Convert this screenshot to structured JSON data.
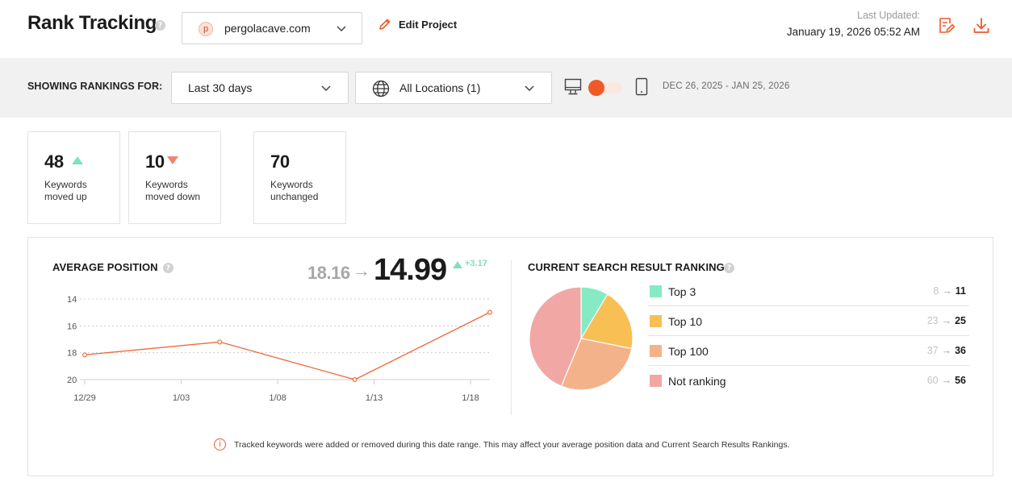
{
  "header": {
    "title": "Rank Tracking",
    "project": {
      "logo_letter": "p",
      "name": "pergolacave.com"
    },
    "edit_project_label": "Edit Project",
    "last_updated_label": "Last Updated:",
    "last_updated_value": "January 19, 2026 05:52 AM",
    "icons": [
      "edit-report-icon",
      "download-icon"
    ]
  },
  "filters": {
    "showing_label": "SHOWING RANKINGS FOR:",
    "period": "Last 30 days",
    "location": "All Locations (1)",
    "device_selected": "desktop",
    "date_range": "DEC 26, 2025 - JAN 25, 2026"
  },
  "stats": [
    {
      "value": "48",
      "label": "Keywords moved up",
      "trend": "up"
    },
    {
      "value": "10",
      "label": "Keywords moved down",
      "trend": "down"
    },
    {
      "value": "70",
      "label": "Keywords unchanged",
      "trend": "none"
    }
  ],
  "average_position": {
    "title": "AVERAGE POSITION",
    "old": "18.16",
    "new": "14.99",
    "delta": "+3.17"
  },
  "rankings": {
    "title": "CURRENT SEARCH RESULT RANKINGS",
    "rows": [
      {
        "label": "Top 3",
        "old": "8",
        "new": "11",
        "color": "#86ebc4"
      },
      {
        "label": "Top 10",
        "old": "23",
        "new": "25",
        "color": "#f8bf55"
      },
      {
        "label": "Top 100",
        "old": "37",
        "new": "36",
        "color": "#f4b28a"
      },
      {
        "label": "Not ranking",
        "old": "60",
        "new": "56",
        "color": "#f1a7a4"
      }
    ]
  },
  "notice": "Tracked keywords were added or removed during this date range. This may affect your average position data and Current Search Results Rankings.",
  "chart_data": [
    {
      "type": "line",
      "title": "AVERAGE POSITION",
      "x_tick_labels": [
        "12/29",
        "1/03",
        "1/08",
        "1/13",
        "1/18"
      ],
      "y_tick_labels": [
        "14",
        "16",
        "18",
        "20"
      ],
      "ylim": [
        14,
        20
      ],
      "y_inverted": true,
      "series": [
        {
          "x": [
            "12/29",
            "1/05",
            "1/12",
            "1/19"
          ],
          "y": [
            18.16,
            17.2,
            20.0,
            14.99
          ],
          "color": "#ee6a3b"
        }
      ],
      "grid": true
    },
    {
      "type": "pie",
      "title": "CURRENT SEARCH RESULT RANKINGS",
      "categories": [
        "Top 3",
        "Top 10",
        "Top 100",
        "Not ranking"
      ],
      "values": [
        11,
        25,
        36,
        56
      ],
      "colors": [
        "#86ebc4",
        "#f8bf55",
        "#f4b28a",
        "#f1a7a4"
      ]
    }
  ]
}
